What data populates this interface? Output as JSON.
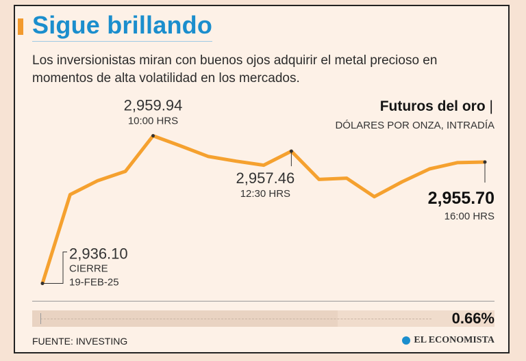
{
  "header": {
    "title": "Sigue brillando",
    "subtitle": "Los inversionistas miran con buenos ojos adquirir el metal precioso en momentos de alta volatilidad en los mercados."
  },
  "chart_data": {
    "type": "line",
    "title": "Futuros del oro",
    "title_separator": "|",
    "subtitle": "DÓLARES POR ONZA, INTRADÍA",
    "ylim": [
      2933.5,
      2962.0
    ],
    "series": [
      {
        "name": "Futuros del oro",
        "values": [
          2936.1,
          2950.45,
          2952.7,
          2954.2,
          2959.94,
          2958.3,
          2956.6,
          2955.85,
          2955.2,
          2957.46,
          2952.9,
          2953.1,
          2950.1,
          2952.5,
          2954.6,
          2955.6,
          2955.7
        ]
      }
    ],
    "color": "#f5a12f",
    "annotations": [
      {
        "index": 0,
        "value": "2,936.10",
        "line1": "CIERRE",
        "line2": "19-FEB-25"
      },
      {
        "index": 4,
        "value": "2,959.94",
        "line1": "10:00 HRS"
      },
      {
        "index": 9,
        "value": "2,957.46",
        "line1": "12:30 HRS"
      },
      {
        "index": 16,
        "value": "2,955.70",
        "line1": "16:00 HRS"
      }
    ],
    "change": {
      "label": "0.66%",
      "percent": 0.66
    }
  },
  "footer": {
    "source": "FUENTE: INVESTING",
    "brand": "EL ECONOMISTA"
  }
}
